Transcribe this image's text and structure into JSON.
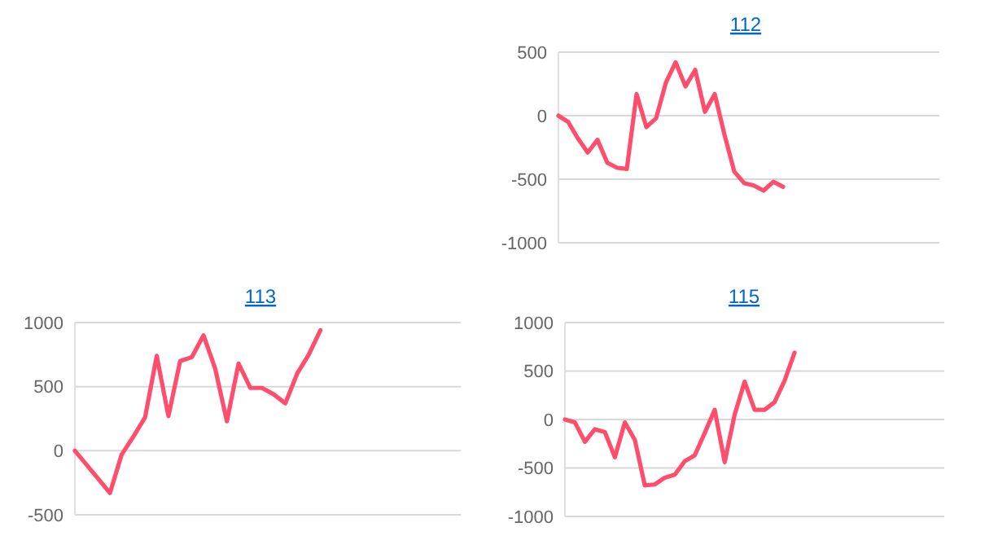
{
  "chart_data": [
    {
      "type": "line",
      "title": "112",
      "categories": [
        null,
        null,
        null,
        null,
        null,
        null,
        null,
        null,
        null,
        null,
        null,
        null,
        null,
        null,
        null,
        null,
        null,
        null,
        null,
        null,
        null,
        null,
        null,
        null,
        null,
        null,
        null,
        null,
        null,
        null,
        null,
        null,
        null,
        null,
        null,
        null,
        null,
        null,
        null,
        null
      ],
      "series": [
        {
          "color": "#ff4d6d",
          "values": [
            0,
            -50,
            -180,
            -290,
            -190,
            -370,
            -410,
            -420,
            170,
            -90,
            -20,
            260,
            420,
            230,
            360,
            30,
            170,
            -150,
            -440,
            -530,
            -550,
            -590,
            -520,
            -560,
            null,
            null,
            null,
            null,
            null,
            null,
            null,
            null,
            null,
            null,
            null,
            null,
            null,
            null,
            null,
            null
          ]
        }
      ],
      "ylim": [
        -1000,
        500
      ],
      "yticks": [
        -1000,
        -500,
        0,
        500
      ],
      "grid": "y",
      "marker": "none",
      "line_style": "solid",
      "tick_labels": "y"
    },
    {
      "type": "line",
      "title": "113",
      "categories": [
        null,
        null,
        null,
        null,
        null,
        null,
        null,
        null,
        null,
        null,
        null,
        null,
        null,
        null,
        null,
        null,
        null,
        null,
        null,
        null,
        null,
        null,
        null,
        null,
        null,
        null,
        null,
        null,
        null,
        null,
        null,
        null,
        null,
        null
      ],
      "series": [
        {
          "color": "#ff4d6d",
          "values": [
            0,
            -110,
            -220,
            -330,
            -30,
            110,
            260,
            740,
            270,
            700,
            730,
            900,
            640,
            230,
            680,
            490,
            490,
            440,
            370,
            600,
            750,
            940,
            null,
            null,
            null,
            null,
            null,
            null,
            null,
            null,
            null,
            null,
            null,
            null
          ]
        }
      ],
      "ylim": [
        -500,
        1000
      ],
      "yticks": [
        -500,
        0,
        500,
        1000
      ],
      "grid": "y",
      "marker": "none",
      "line_style": "solid",
      "tick_labels": "y"
    },
    {
      "type": "line",
      "title": "115",
      "categories": [
        null,
        null,
        null,
        null,
        null,
        null,
        null,
        null,
        null,
        null,
        null,
        null,
        null,
        null,
        null,
        null,
        null,
        null,
        null,
        null,
        null,
        null,
        null,
        null,
        null,
        null,
        null,
        null,
        null,
        null,
        null,
        null,
        null,
        null,
        null,
        null,
        null,
        null,
        null
      ],
      "series": [
        {
          "color": "#ff4d6d",
          "values": [
            0,
            -30,
            -230,
            -100,
            -130,
            -390,
            -30,
            -210,
            -680,
            -670,
            -600,
            -570,
            -430,
            -370,
            -140,
            100,
            -440,
            50,
            390,
            100,
            100,
            180,
            400,
            690,
            null,
            null,
            null,
            null,
            null,
            null,
            null,
            null,
            null,
            null,
            null,
            null,
            null,
            null,
            null
          ]
        }
      ],
      "ylim": [
        -1000,
        1000
      ],
      "yticks": [
        -1000,
        -500,
        0,
        500,
        1000
      ],
      "grid": "y",
      "marker": "none",
      "line_style": "solid",
      "tick_labels": "y"
    }
  ]
}
